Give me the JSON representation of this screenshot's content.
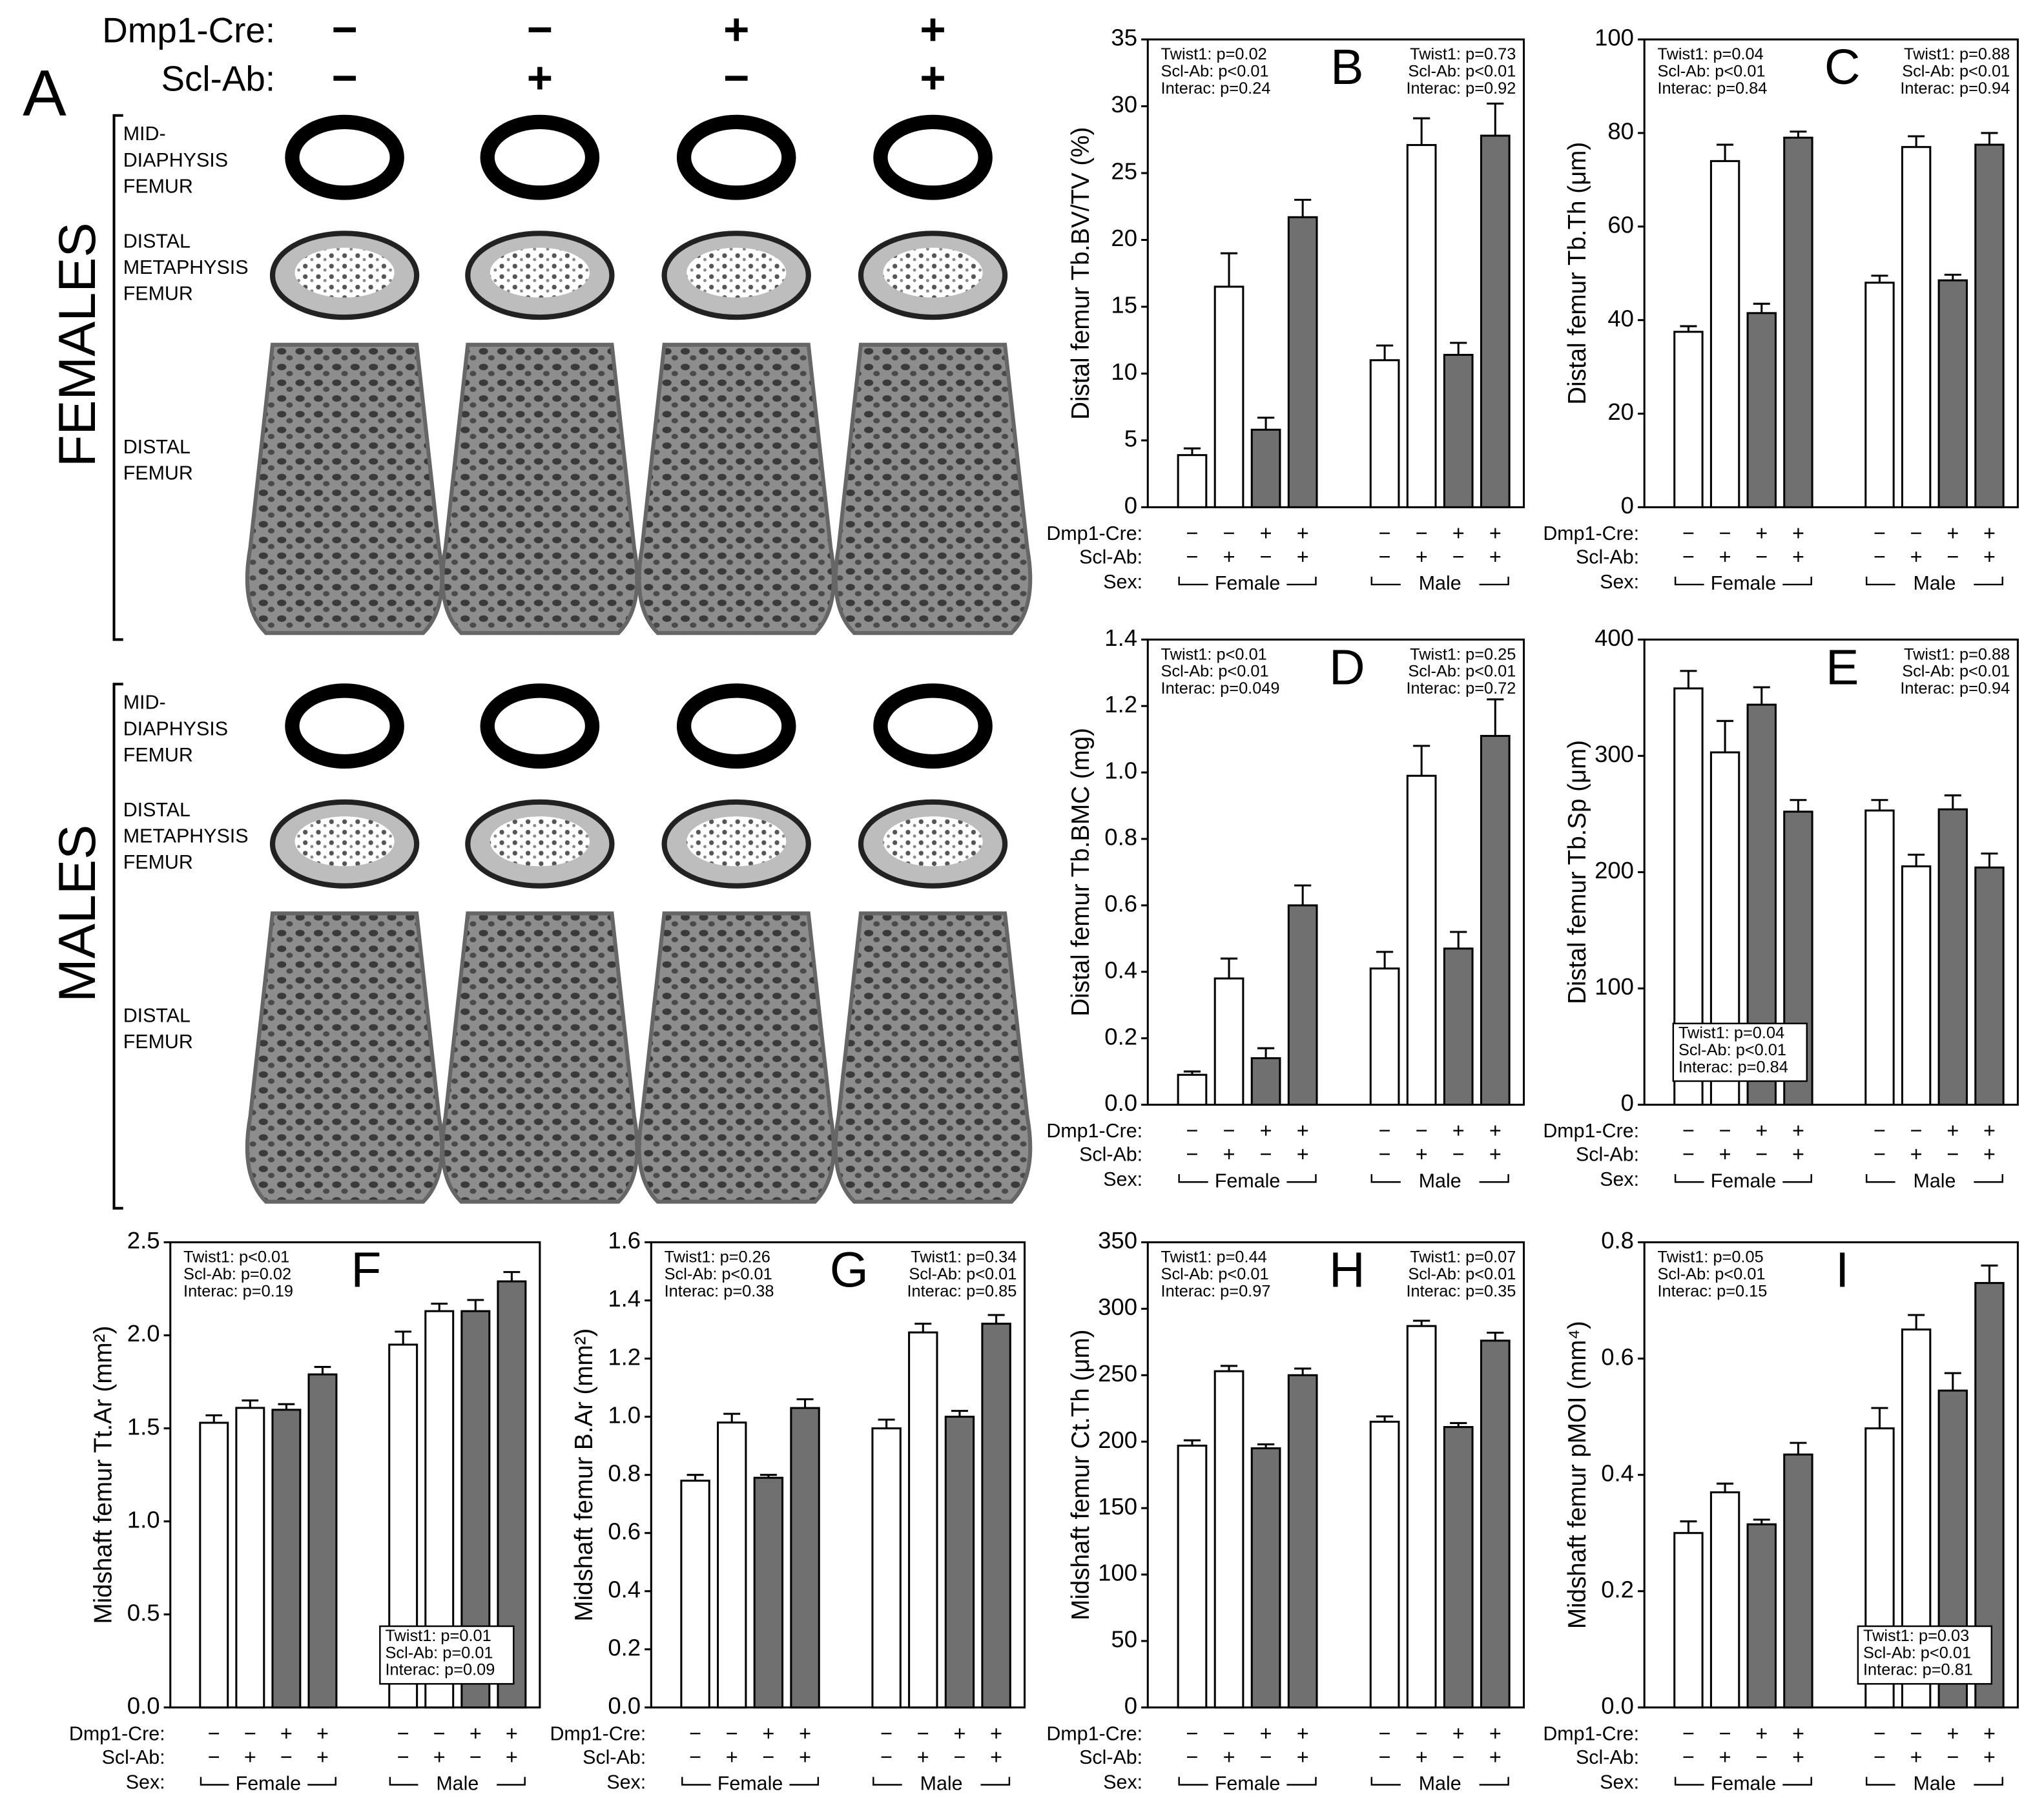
{
  "panel_a": {
    "letter": "A",
    "row_labels": [
      "Dmp1-Cre:",
      "Scl-Ab:"
    ],
    "dmp1": [
      "−",
      "−",
      "+",
      "+"
    ],
    "sclab": [
      "−",
      "+",
      "−",
      "+"
    ],
    "groups": [
      {
        "label": "FEMALES",
        "sections": [
          [
            "MID-",
            "DIAPHYSIS",
            "FEMUR"
          ],
          [
            "DISTAL",
            "METAPHYSIS",
            "FEMUR"
          ],
          [
            "DISTAL",
            "FEMUR"
          ]
        ]
      },
      {
        "label": "MALES",
        "sections": [
          [
            "MID-",
            "DIAPHYSIS",
            "FEMUR"
          ],
          [
            "DISTAL",
            "METAPHYSIS",
            "FEMUR"
          ],
          [
            "DISTAL",
            "FEMUR"
          ]
        ]
      }
    ]
  },
  "chart_data": [
    {
      "type": "bar",
      "letter": "B",
      "y_label": "Distal femur Tb.BV/TV (%)",
      "ylim": [
        0,
        35
      ],
      "yticks": [
        0,
        5,
        10,
        15,
        20,
        25,
        30,
        35
      ],
      "values": [
        3.9,
        16.5,
        5.8,
        21.7,
        11.0,
        27.1,
        11.4,
        27.8
      ],
      "errors": [
        0.5,
        2.5,
        0.9,
        1.3,
        1.1,
        2.0,
        0.9,
        2.4
      ],
      "bar_colors": [
        "#ffffff",
        "#ffffff",
        "#707070",
        "#707070",
        "#ffffff",
        "#ffffff",
        "#707070",
        "#707070"
      ],
      "x_rows": {
        "labels": [
          "Dmp1-Cre:",
          "Scl-Ab:",
          "Sex:"
        ],
        "dmp1": [
          "−",
          "−",
          "+",
          "+",
          "−",
          "−",
          "+",
          "+"
        ],
        "sclab": [
          "−",
          "+",
          "−",
          "+",
          "−",
          "+",
          "−",
          "+"
        ],
        "groups": [
          "Female",
          "Male"
        ]
      },
      "stats": [
        {
          "corner": "top-left",
          "boxed": false,
          "lines": [
            "Twist1: p=0.02",
            "Scl-Ab: p<0.01",
            "Interac: p=0.24"
          ]
        },
        {
          "corner": "top-right",
          "boxed": false,
          "lines": [
            "Twist1: p=0.73",
            "Scl-Ab: p<0.01",
            "Interac: p=0.92"
          ]
        }
      ]
    },
    {
      "type": "bar",
      "letter": "C",
      "y_label": "Distal femur Tb.Th (μm)",
      "ylim": [
        0,
        100
      ],
      "yticks": [
        0,
        20,
        40,
        60,
        80,
        100
      ],
      "values": [
        37.5,
        74,
        41.5,
        79,
        48,
        77,
        48.5,
        77.5
      ],
      "errors": [
        1.2,
        3.5,
        2,
        1.3,
        1.5,
        2.3,
        1.2,
        2.5
      ],
      "bar_colors": [
        "#ffffff",
        "#ffffff",
        "#707070",
        "#707070",
        "#ffffff",
        "#ffffff",
        "#707070",
        "#707070"
      ],
      "x_rows": {
        "labels": [
          "Dmp1-Cre:",
          "Scl-Ab:",
          "Sex:"
        ],
        "dmp1": [
          "−",
          "−",
          "+",
          "+",
          "−",
          "−",
          "+",
          "+"
        ],
        "sclab": [
          "−",
          "+",
          "−",
          "+",
          "−",
          "+",
          "−",
          "+"
        ],
        "groups": [
          "Female",
          "Male"
        ]
      },
      "stats": [
        {
          "corner": "top-left",
          "boxed": false,
          "lines": [
            "Twist1: p=0.04",
            "Scl-Ab: p<0.01",
            "Interac: p=0.84"
          ]
        },
        {
          "corner": "top-right",
          "boxed": false,
          "lines": [
            "Twist1: p=0.88",
            "Scl-Ab: p<0.01",
            "Interac: p=0.94"
          ]
        }
      ]
    },
    {
      "type": "bar",
      "letter": "D",
      "y_label": "Distal femur Tb.BMC (mg)",
      "ylim": [
        0,
        1.4
      ],
      "yticks": [
        {
          "value": 0,
          "label": "0.0"
        },
        0.2,
        0.4,
        0.6,
        0.8,
        {
          "value": 1,
          "label": "1.0"
        },
        1.2,
        1.4
      ],
      "values": [
        0.09,
        0.38,
        0.14,
        0.6,
        0.41,
        0.99,
        0.47,
        1.11
      ],
      "errors": [
        0.01,
        0.06,
        0.03,
        0.06,
        0.05,
        0.09,
        0.05,
        0.11
      ],
      "bar_colors": [
        "#ffffff",
        "#ffffff",
        "#707070",
        "#707070",
        "#ffffff",
        "#ffffff",
        "#707070",
        "#707070"
      ],
      "x_rows": {
        "labels": [
          "Dmp1-Cre:",
          "Scl-Ab:",
          "Sex:"
        ],
        "dmp1": [
          "−",
          "−",
          "+",
          "+",
          "−",
          "−",
          "+",
          "+"
        ],
        "sclab": [
          "−",
          "+",
          "−",
          "+",
          "−",
          "+",
          "−",
          "+"
        ],
        "groups": [
          "Female",
          "Male"
        ]
      },
      "stats": [
        {
          "corner": "top-left",
          "boxed": false,
          "lines": [
            "Twist1: p<0.01",
            "Scl-Ab: p<0.01",
            "Interac: p=0.049"
          ]
        },
        {
          "corner": "top-right",
          "boxed": false,
          "lines": [
            "Twist1: p=0.25",
            "Scl-Ab: p<0.01",
            "Interac: p=0.72"
          ]
        }
      ]
    },
    {
      "type": "bar",
      "letter": "E",
      "y_label": "Distal femur Tb.Sp (μm)",
      "ylim": [
        0,
        400
      ],
      "yticks": [
        0,
        100,
        200,
        300,
        400
      ],
      "values": [
        358,
        303,
        344,
        252,
        253,
        205,
        254,
        204
      ],
      "errors": [
        15,
        27,
        15,
        10,
        9,
        10,
        12,
        12
      ],
      "bar_colors": [
        "#ffffff",
        "#ffffff",
        "#707070",
        "#707070",
        "#ffffff",
        "#ffffff",
        "#707070",
        "#707070"
      ],
      "x_rows": {
        "labels": [
          "Dmp1-Cre:",
          "Scl-Ab:",
          "Sex:"
        ],
        "dmp1": [
          "−",
          "−",
          "+",
          "+",
          "−",
          "−",
          "+",
          "+"
        ],
        "sclab": [
          "−",
          "+",
          "−",
          "+",
          "−",
          "+",
          "−",
          "+"
        ],
        "groups": [
          "Female",
          "Male"
        ]
      },
      "stats": [
        {
          "corner": "bottom-left",
          "boxed": true,
          "lines": [
            "Twist1: p=0.04",
            "Scl-Ab: p<0.01",
            "Interac: p=0.84"
          ]
        },
        {
          "corner": "top-right",
          "boxed": false,
          "lines": [
            "Twist1: p=0.88",
            "Scl-Ab: p<0.01",
            "Interac: p=0.94"
          ]
        }
      ]
    },
    {
      "type": "bar",
      "letter": "F",
      "y_label": "Midshaft femur Tt.Ar (mm²)",
      "ylim": [
        0,
        2.5
      ],
      "yticks": [
        {
          "value": 0,
          "label": "0.0"
        },
        0.5,
        {
          "value": 1,
          "label": "1.0"
        },
        1.5,
        {
          "value": 2,
          "label": "2.0"
        },
        2.5
      ],
      "values": [
        1.53,
        1.61,
        1.6,
        1.79,
        1.95,
        2.13,
        2.13,
        2.29
      ],
      "errors": [
        0.04,
        0.04,
        0.03,
        0.04,
        0.07,
        0.04,
        0.06,
        0.05
      ],
      "bar_colors": [
        "#ffffff",
        "#ffffff",
        "#707070",
        "#707070",
        "#ffffff",
        "#ffffff",
        "#707070",
        "#707070"
      ],
      "x_rows": {
        "labels": [
          "Dmp1-Cre:",
          "Scl-Ab:",
          "Sex:"
        ],
        "dmp1": [
          "−",
          "−",
          "+",
          "+",
          "−",
          "−",
          "+",
          "+"
        ],
        "sclab": [
          "−",
          "+",
          "−",
          "+",
          "−",
          "+",
          "−",
          "+"
        ],
        "groups": [
          "Female",
          "Male"
        ]
      },
      "stats": [
        {
          "corner": "top-left",
          "boxed": false,
          "lines": [
            "Twist1: p<0.01",
            "Scl-Ab: p=0.02",
            "Interac: p=0.19"
          ]
        },
        {
          "corner": "bottom-right",
          "boxed": true,
          "lines": [
            "Twist1: p=0.01",
            "Scl-Ab: p=0.01",
            "Interac: p=0.09"
          ]
        }
      ]
    },
    {
      "type": "bar",
      "letter": "G",
      "y_label": "Midshaft femur B.Ar (mm²)",
      "ylim": [
        0,
        1.6
      ],
      "yticks": [
        {
          "value": 0,
          "label": "0.0"
        },
        0.2,
        0.4,
        0.6,
        0.8,
        {
          "value": 1,
          "label": "1.0"
        },
        1.2,
        1.4,
        1.6
      ],
      "values": [
        0.78,
        0.98,
        0.79,
        1.03,
        0.96,
        1.29,
        1.0,
        1.32
      ],
      "errors": [
        0.02,
        0.03,
        0.01,
        0.03,
        0.03,
        0.03,
        0.02,
        0.03
      ],
      "bar_colors": [
        "#ffffff",
        "#ffffff",
        "#707070",
        "#707070",
        "#ffffff",
        "#ffffff",
        "#707070",
        "#707070"
      ],
      "x_rows": {
        "labels": [
          "Dmp1-Cre:",
          "Scl-Ab:",
          "Sex:"
        ],
        "dmp1": [
          "−",
          "−",
          "+",
          "+",
          "−",
          "−",
          "+",
          "+"
        ],
        "sclab": [
          "−",
          "+",
          "−",
          "+",
          "−",
          "+",
          "−",
          "+"
        ],
        "groups": [
          "Female",
          "Male"
        ]
      },
      "stats": [
        {
          "corner": "top-left",
          "boxed": false,
          "lines": [
            "Twist1: p=0.26",
            "Scl-Ab: p<0.01",
            "Interac: p=0.38"
          ]
        },
        {
          "corner": "top-right",
          "boxed": false,
          "lines": [
            "Twist1: p=0.34",
            "Scl-Ab: p<0.01",
            "Interac: p=0.85"
          ]
        }
      ]
    },
    {
      "type": "bar",
      "letter": "H",
      "y_label": "Midshaft femur Ct.Th (μm)",
      "ylim": [
        0,
        350
      ],
      "yticks": [
        0,
        50,
        100,
        150,
        200,
        250,
        300,
        350
      ],
      "values": [
        197,
        253,
        195,
        250,
        215,
        287,
        211,
        276
      ],
      "errors": [
        4,
        4,
        3,
        5,
        4,
        4,
        3,
        6
      ],
      "bar_colors": [
        "#ffffff",
        "#ffffff",
        "#707070",
        "#707070",
        "#ffffff",
        "#ffffff",
        "#707070",
        "#707070"
      ],
      "x_rows": {
        "labels": [
          "Dmp1-Cre:",
          "Scl-Ab:",
          "Sex:"
        ],
        "dmp1": [
          "−",
          "−",
          "+",
          "+",
          "−",
          "−",
          "+",
          "+"
        ],
        "sclab": [
          "−",
          "+",
          "−",
          "+",
          "−",
          "+",
          "−",
          "+"
        ],
        "groups": [
          "Female",
          "Male"
        ]
      },
      "stats": [
        {
          "corner": "top-left",
          "boxed": false,
          "lines": [
            "Twist1: p=0.44",
            "Scl-Ab: p<0.01",
            "Interac: p=0.97"
          ]
        },
        {
          "corner": "top-right",
          "boxed": false,
          "lines": [
            "Twist1: p=0.07",
            "Scl-Ab: p<0.01",
            "Interac: p=0.35"
          ]
        }
      ]
    },
    {
      "type": "bar",
      "letter": "I",
      "y_label": "Midshaft femur pMOI (mm⁴)",
      "ylim": [
        0,
        0.8
      ],
      "yticks": [
        {
          "value": 0,
          "label": "0.0"
        },
        0.2,
        0.4,
        0.6,
        0.8
      ],
      "values": [
        0.3,
        0.37,
        0.315,
        0.435,
        0.48,
        0.65,
        0.545,
        0.73
      ],
      "errors": [
        0.02,
        0.015,
        0.008,
        0.02,
        0.035,
        0.025,
        0.03,
        0.03
      ],
      "bar_colors": [
        "#ffffff",
        "#ffffff",
        "#707070",
        "#707070",
        "#ffffff",
        "#ffffff",
        "#707070",
        "#707070"
      ],
      "x_rows": {
        "labels": [
          "Dmp1-Cre:",
          "Scl-Ab:",
          "Sex:"
        ],
        "dmp1": [
          "−",
          "−",
          "+",
          "+",
          "−",
          "−",
          "+",
          "+"
        ],
        "sclab": [
          "−",
          "+",
          "−",
          "+",
          "−",
          "+",
          "−",
          "+"
        ],
        "groups": [
          "Female",
          "Male"
        ]
      },
      "stats": [
        {
          "corner": "top-left",
          "boxed": false,
          "lines": [
            "Twist1: p=0.05",
            "Scl-Ab: p<0.01",
            "Interac: p=0.15"
          ]
        },
        {
          "corner": "bottom-right",
          "boxed": true,
          "lines": [
            "Twist1: p=0.03",
            "Scl-Ab: p<0.01",
            "Interac: p=0.81"
          ]
        }
      ]
    }
  ]
}
